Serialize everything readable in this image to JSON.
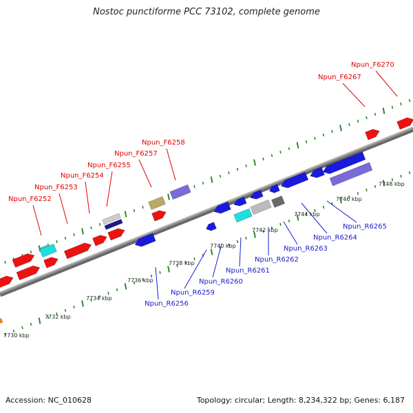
{
  "title": "Nostoc punctiforme PCC 73102, complete genome",
  "footer": {
    "accession": "Accession: NC_010628",
    "summary": "Topology: circular; Length: 8,234,322 bp; Genes: 6,187"
  },
  "colors": {
    "backbone": "#8a8a8a",
    "tick": "#2a8a2a",
    "forward_label": "#dd0000",
    "reverse_label": "#1a1acc",
    "red": "#ee1111",
    "cyan": "#22dddd",
    "blue": "#1a1add",
    "purple": "#7a6ad8",
    "tan": "#bba866",
    "gray": "#bbbbbb",
    "darkgray": "#6a6a6a",
    "stripe": "#cccccc",
    "navy": "#1a1a88",
    "orange": "#ee8800"
  },
  "scale_labels": [
    "7730 kbp",
    "7732 kbp",
    "7734 kbp",
    "7736 kbp",
    "7738 kbp",
    "7740 kbp",
    "7742 kbp",
    "7744 kbp",
    "7746 kbp",
    "7748 kbp"
  ],
  "forward_genes": [
    {
      "name": "Npun_F6252",
      "color": "red"
    },
    {
      "name": "Npun_F6253",
      "color": "cyan"
    },
    {
      "name": "Npun_F6254",
      "color": "red"
    },
    {
      "name": "Npun_F6255",
      "color": "red"
    },
    {
      "name": "Npun_F6257",
      "color": "tan"
    },
    {
      "name": "Npun_F6258",
      "color": "purple"
    },
    {
      "name": "Npun_F6267",
      "color": "red"
    },
    {
      "name": "Npun_F6270",
      "color": "red"
    }
  ],
  "reverse_genes": [
    {
      "name": "Npun_R6256",
      "color": "blue"
    },
    {
      "name": "Npun_R6259",
      "color": "blue"
    },
    {
      "name": "Npun_R6260",
      "color": "blue"
    },
    {
      "name": "Npun_R6261",
      "color": "cyan"
    },
    {
      "name": "Npun_R6262",
      "color": "gray"
    },
    {
      "name": "Npun_R6263",
      "color": "blue"
    },
    {
      "name": "Npun_R6264",
      "color": "blue"
    },
    {
      "name": "Npun_R6265",
      "color": "purple"
    }
  ],
  "unlabeled_features": [
    {
      "strand": "forward",
      "color": "red"
    },
    {
      "strand": "forward",
      "color": "red"
    },
    {
      "strand": "forward",
      "color": "cyan"
    },
    {
      "strand": "forward",
      "color": "red"
    },
    {
      "strand": "forward",
      "color": "red"
    },
    {
      "strand": "forward",
      "color": "red"
    },
    {
      "strand": "forward",
      "color": "stripe"
    },
    {
      "strand": "forward",
      "color": "navy"
    },
    {
      "strand": "reverse",
      "color": "blue"
    },
    {
      "strand": "reverse",
      "color": "blue"
    },
    {
      "strand": "reverse",
      "color": "darkgray"
    },
    {
      "strand": "reverse",
      "color": "blue"
    },
    {
      "strand": "reverse",
      "color": "blue"
    },
    {
      "strand": "reverse",
      "color": "orange"
    }
  ]
}
